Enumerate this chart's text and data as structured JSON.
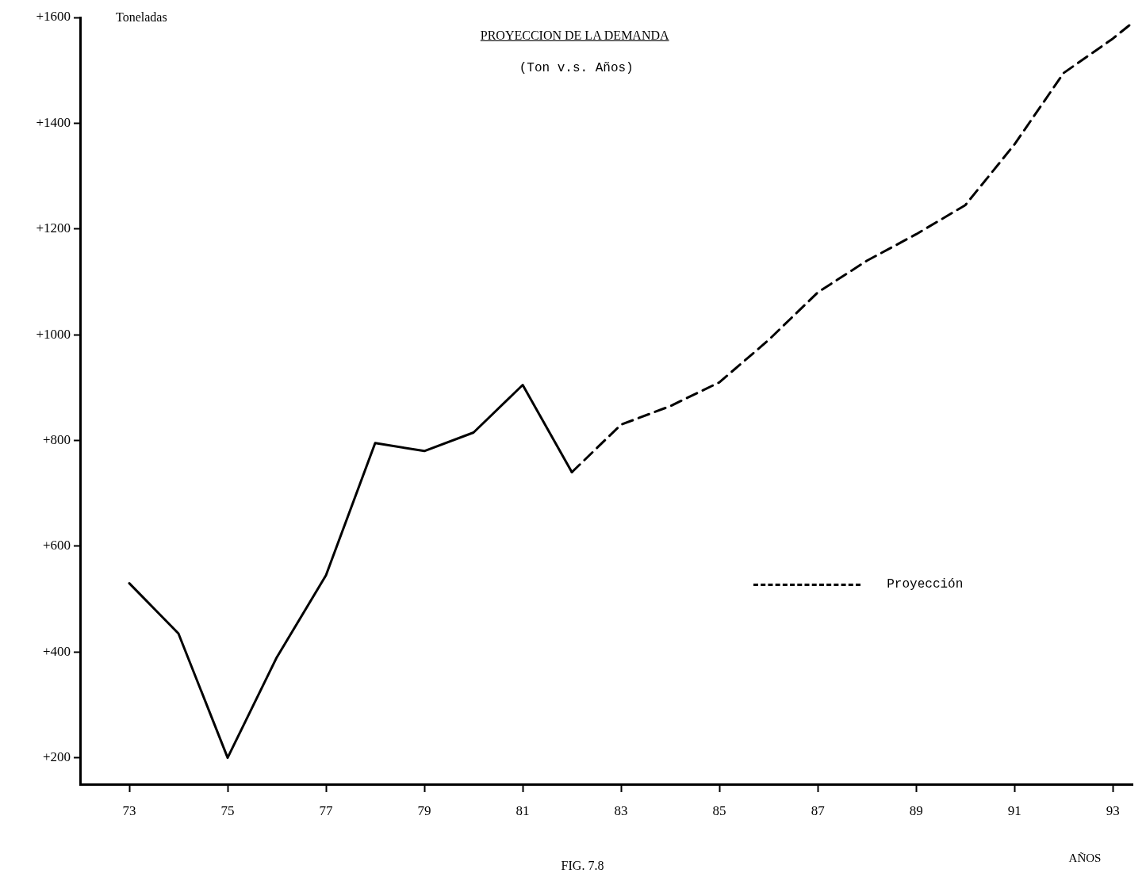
{
  "chart_data": {
    "type": "line",
    "title": "PROYECCION DE LA DEMANDA",
    "subtitle": "(Ton v.s. Años)",
    "ylabel": "Toneladas",
    "xlabel": "AÑOS",
    "annotations": [
      "FIG. 7.8"
    ],
    "xlim": [
      72,
      93.4
    ],
    "xticks": [
      73,
      75,
      77,
      79,
      81,
      83,
      85,
      87,
      89,
      91,
      93
    ],
    "ylim": [
      150,
      1600
    ],
    "yticks": [
      {
        "value": 200,
        "label": "+200"
      },
      {
        "value": 400,
        "label": "+400"
      },
      {
        "value": 600,
        "label": "+600"
      },
      {
        "value": 800,
        "label": "+800"
      },
      {
        "value": 1000,
        "label": "+1000"
      },
      {
        "value": 1200,
        "label": "+1200"
      },
      {
        "value": 1400,
        "label": "+1400"
      },
      {
        "value": 1600,
        "label": "+1600"
      }
    ],
    "grid": false,
    "legend": "right",
    "marker": "none",
    "series": [
      {
        "color": "#000000",
        "line_style": "solid",
        "x": [
          73,
          74,
          75,
          76,
          77,
          78,
          79,
          80,
          81,
          82
        ],
        "values": [
          530,
          435,
          200,
          390,
          545,
          795,
          780,
          815,
          905,
          740
        ]
      },
      {
        "name": "Proyección",
        "color": "#000000",
        "line_style": "dashed",
        "x": [
          82,
          83,
          84,
          85,
          86,
          87,
          88,
          89,
          90,
          91,
          92,
          93,
          93.4
        ],
        "values": [
          740,
          830,
          865,
          910,
          990,
          1080,
          1140,
          1190,
          1245,
          1360,
          1495,
          1560,
          1590
        ]
      }
    ]
  }
}
